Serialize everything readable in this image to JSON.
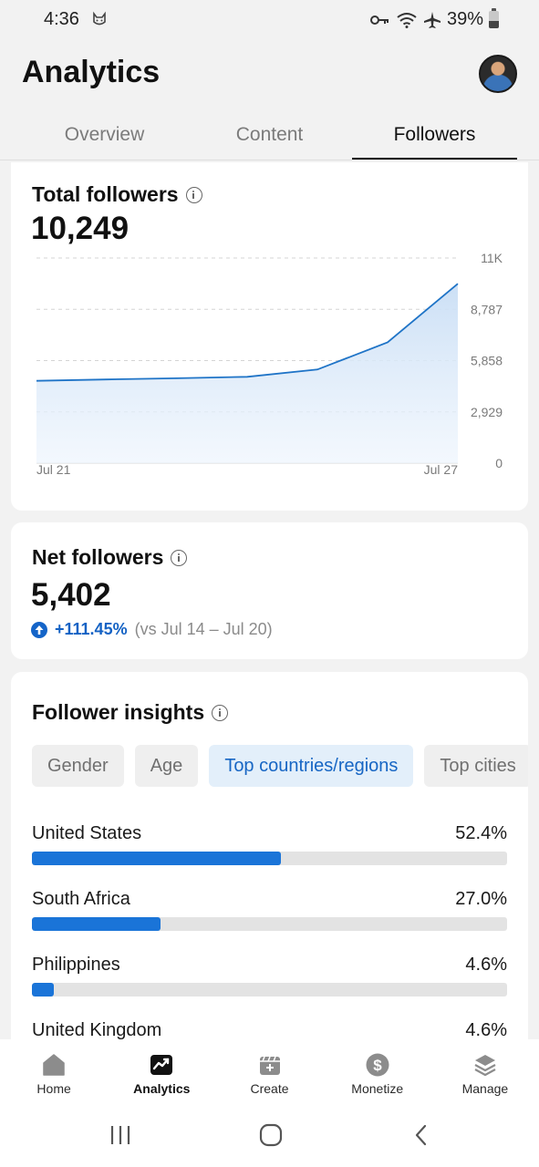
{
  "status_bar": {
    "time": "4:36",
    "battery": "39%",
    "icons": [
      "cat-icon",
      "key-icon",
      "wifi-icon",
      "airplane-icon",
      "battery-icon"
    ]
  },
  "header": {
    "title": "Analytics",
    "avatar": "avatar"
  },
  "tabs": [
    {
      "label": "Overview",
      "active": false
    },
    {
      "label": "Content",
      "active": false
    },
    {
      "label": "Followers",
      "active": true
    }
  ],
  "total_followers": {
    "title": "Total followers",
    "value": "10,249",
    "chart_data": {
      "type": "area",
      "x_labels": [
        "Jul 21",
        "Jul 27"
      ],
      "x": [
        "Jul 21",
        "Jul 22",
        "Jul 23",
        "Jul 24",
        "Jul 25",
        "Jul 26",
        "Jul 27"
      ],
      "values": [
        4700,
        4780,
        4850,
        4930,
        5350,
        6900,
        10249
      ],
      "y_ticks": [
        "0",
        "2,929",
        "5,858",
        "8,787",
        "11K"
      ],
      "ylim": [
        0,
        11716
      ],
      "grid": true,
      "color": "#1f74c7"
    }
  },
  "net_followers": {
    "title": "Net followers",
    "value": "5,402",
    "change": "+111.45%",
    "comparison": "(vs Jul 14 – Jul 20)"
  },
  "follower_insights": {
    "title": "Follower insights",
    "pills": [
      {
        "label": "Gender",
        "active": false
      },
      {
        "label": "Age",
        "active": false
      },
      {
        "label": "Top countries/regions",
        "active": true
      },
      {
        "label": "Top cities",
        "active": false
      }
    ],
    "rows": [
      {
        "label": "United States",
        "pct": "52.4%",
        "value": 0.524
      },
      {
        "label": "South Africa",
        "pct": "27.0%",
        "value": 0.27
      },
      {
        "label": "Philippines",
        "pct": "4.6%",
        "value": 0.046
      },
      {
        "label": "United Kingdom",
        "pct": "4.6%",
        "value": 0.046
      }
    ]
  },
  "bottom_nav": [
    {
      "label": "Home",
      "icon": "home-icon",
      "active": false
    },
    {
      "label": "Analytics",
      "icon": "analytics-icon",
      "active": true
    },
    {
      "label": "Create",
      "icon": "create-icon",
      "active": false
    },
    {
      "label": "Monetize",
      "icon": "dollar-icon",
      "active": false
    },
    {
      "label": "Manage",
      "icon": "layers-icon",
      "active": false
    }
  ],
  "accent_color": "#1a74d8"
}
